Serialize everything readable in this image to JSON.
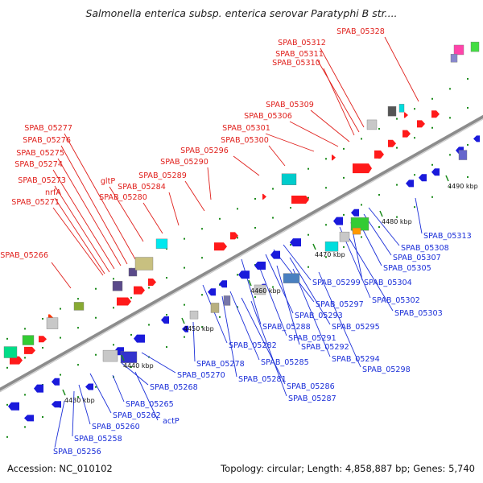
{
  "title": "Salmonella enterica subsp. enterica serovar Paratyphi B str....",
  "footer": {
    "accession": "Accession: NC_010102",
    "summary": "Topology: circular; Length: 4,858,887 bp; Genes: 5,740"
  },
  "colors": {
    "forward_label": "#e0201c",
    "reverse_label": "#1a2ed8",
    "backbone": "#9a9a9a",
    "tick": "#1a8a1a"
  },
  "ticks": [
    {
      "label": "4430 kbp"
    },
    {
      "label": "4440 kbp"
    },
    {
      "label": "4450 kbp"
    },
    {
      "label": "4460 kbp"
    },
    {
      "label": "4470 kbp"
    },
    {
      "label": "4480 kbp"
    },
    {
      "label": "4490 kbp"
    }
  ],
  "forward_labels": [
    "SPAB_05328",
    "SPAB_05312",
    "SPAB_05311",
    "SPAB_05310",
    "SPAB_05309",
    "SPAB_05306",
    "SPAB_05301",
    "SPAB_05300",
    "SPAB_05296",
    "SPAB_05290",
    "SPAB_05289",
    "SPAB_05284",
    "SPAB_05280",
    "gltP",
    "SPAB_05277",
    "SPAB_05276",
    "SPAB_05275",
    "SPAB_05274",
    "SPAB_05273",
    "nrfA",
    "SPAB_05271",
    "SPAB_05266"
  ],
  "reverse_labels": [
    "SPAB_05313",
    "SPAB_05308",
    "SPAB_05307",
    "SPAB_05305",
    "SPAB_05304",
    "SPAB_05302",
    "SPAB_05303",
    "SPAB_05299",
    "SPAB_05297",
    "SPAB_05293",
    "SPAB_05295",
    "SPAB_05288",
    "SPAB_05291",
    "SPAB_05292",
    "SPAB_05294",
    "SPAB_05298",
    "SPAB_05282",
    "SPAB_05285",
    "SPAB_05281",
    "SPAB_05286",
    "SPAB_05287",
    "SPAB_05278",
    "SPAB_05270",
    "SPAB_05268",
    "SPAB_05265",
    "SPAB_05262",
    "actP",
    "SPAB_05260",
    "SPAB_05258",
    "SPAB_05256"
  ]
}
